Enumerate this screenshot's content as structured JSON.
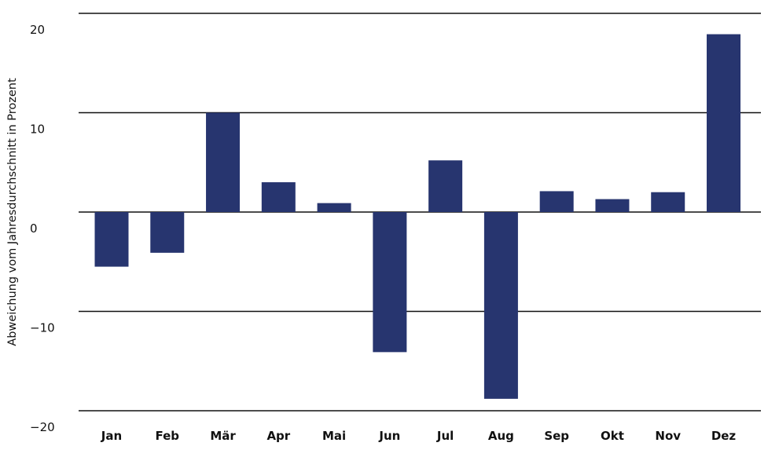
{
  "chart_data": {
    "type": "bar",
    "title": "",
    "xlabel": "",
    "ylabel": "Abweichung vom Jahresdurchschnitt in Prozent",
    "categories": [
      "Jan",
      "Feb",
      "Mär",
      "Apr",
      "Mai",
      "Jun",
      "Jul",
      "Aug",
      "Sep",
      "Okt",
      "Nov",
      "Dez"
    ],
    "values": [
      -5.5,
      -4.1,
      10.0,
      3.0,
      0.9,
      -14.1,
      5.2,
      -18.8,
      2.1,
      1.3,
      2.0,
      17.9
    ],
    "ylim": [
      -20,
      20
    ],
    "yticks": [
      20,
      10,
      0,
      -10,
      -20
    ],
    "ytick_labels": [
      "20",
      "10",
      "0",
      "−10",
      "−20"
    ],
    "grid": true,
    "bar_color": "#27356f",
    "grid_color": "#111111"
  }
}
